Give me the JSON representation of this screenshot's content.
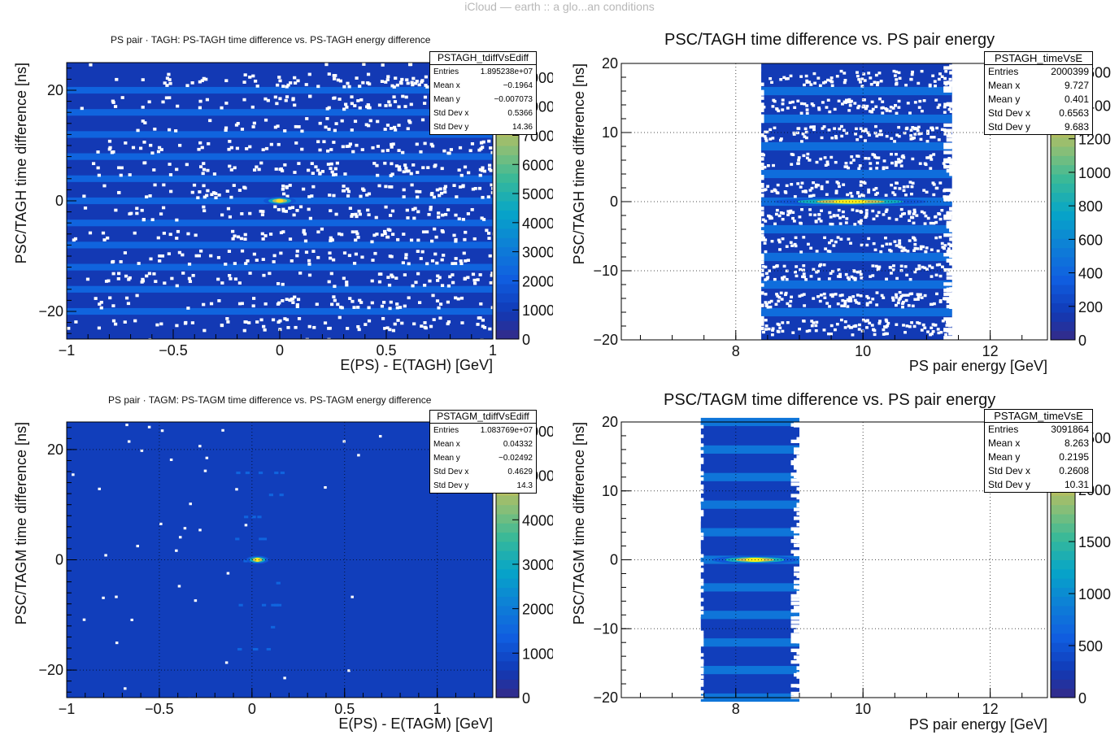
{
  "window": {
    "title": "iCloud — earth :: a glo...an conditions"
  },
  "panels": [
    {
      "title": "PS pair · TAGH: PS-TAGH time difference vs. PS-TAGH energy difference",
      "stats": {
        "name": "PSTAGH_tdiffVsEdiff",
        "rows": [
          {
            "label": "Entries",
            "value": "1.895238e+07"
          },
          {
            "label": "Mean x",
            "value": "−0.1964"
          },
          {
            "label": "Mean y",
            "value": "−0.007073"
          },
          {
            "label": "Std Dev x",
            "value": "0.5366"
          },
          {
            "label": "Std Dev y",
            "value": "14.36"
          }
        ]
      }
    },
    {
      "title": "PSC/TAGH time difference vs. PS pair energy",
      "stats": {
        "name": "PSTAGH_timeVsE",
        "rows": [
          {
            "label": "Entries",
            "value": "2000399"
          },
          {
            "label": "Mean x",
            "value": "9.727"
          },
          {
            "label": "Mean y",
            "value": "0.401"
          },
          {
            "label": "Std Dev x",
            "value": "0.6563"
          },
          {
            "label": "Std Dev y",
            "value": "9.683"
          }
        ]
      }
    },
    {
      "title": "PS pair · TAGM: PS-TAGM time difference vs. PS-TAGM energy difference",
      "stats": {
        "name": "PSTAGM_tdiffVsEdiff",
        "rows": [
          {
            "label": "Entries",
            "value": "1.083769e+07"
          },
          {
            "label": "Mean x",
            "value": "0.04332"
          },
          {
            "label": "Mean y",
            "value": "−0.02492"
          },
          {
            "label": "Std Dev x",
            "value": "0.4629"
          },
          {
            "label": "Std Dev y",
            "value": "14.3"
          }
        ]
      }
    },
    {
      "title": "PSC/TAGM time difference vs. PS pair energy",
      "stats": {
        "name": "PSTAGM_timeVsE",
        "rows": [
          {
            "label": "Entries",
            "value": "3091864"
          },
          {
            "label": "Mean x",
            "value": "8.263"
          },
          {
            "label": "Mean y",
            "value": "0.2195"
          },
          {
            "label": "Std Dev x",
            "value": "0.2608"
          },
          {
            "label": "Std Dev y",
            "value": "10.31"
          }
        ]
      }
    }
  ],
  "chart_data": [
    {
      "type": "heatmap",
      "title": "PS pair · TAGH: PS-TAGH time difference vs. PS-TAGH energy difference",
      "xlabel": "E(PS) - E(TAGH) [GeV]",
      "ylabel": "PSC/TAGH time difference [ns]",
      "xlim": [
        -1,
        1
      ],
      "ylim": [
        -25,
        25
      ],
      "xticks": [
        "−1",
        "−0.5",
        "0",
        "0.5",
        "1"
      ],
      "yticks": [
        "−20",
        "0",
        "20"
      ],
      "grid": false,
      "z_ticks": [
        "0",
        "1000",
        "2000",
        "3000",
        "4000",
        "5000",
        "6000",
        "7000",
        "8000",
        "9000"
      ],
      "zlim": [
        0,
        9500
      ],
      "peak": {
        "x": 0.0,
        "y": 0.0,
        "value": 9000
      },
      "time_bands_ns": [
        -20,
        -16,
        -12,
        -8,
        -4,
        0,
        4,
        8,
        12,
        16,
        20
      ],
      "stats_box": "top-right",
      "colormap": "kBird"
    },
    {
      "type": "heatmap",
      "title": "PSC/TAGH time difference vs. PS pair energy",
      "xlabel": "PS pair energy [GeV]",
      "ylabel": "PSC/TAGH time difference [ns]",
      "xlim": [
        6.2,
        12.9
      ],
      "ylim": [
        -20,
        20
      ],
      "xticks": [
        "8",
        "10",
        "12"
      ],
      "yticks": [
        "−20",
        "−10",
        "0",
        "10",
        "20"
      ],
      "grid": true,
      "z_ticks": [
        "0",
        "200",
        "400",
        "600",
        "800",
        "1000",
        "1200",
        "1400",
        "1600"
      ],
      "zlim": [
        0,
        1650
      ],
      "occupied_x_range": [
        8.4,
        11.4
      ],
      "peak": {
        "x": 9.7,
        "y": 0.0,
        "value": 1600
      },
      "time_bands_ns": [
        -16,
        -12,
        -8,
        -4,
        0,
        4,
        8,
        12,
        16
      ],
      "stats_box": "top-right",
      "colormap": "kBird"
    },
    {
      "type": "heatmap",
      "title": "PS pair · TAGM: PS-TAGM time difference vs. PS-TAGM energy difference",
      "xlabel": "E(PS) - E(TAGM) [GeV]",
      "ylabel": "PSC/TAGM time difference [ns]",
      "xlim": [
        -1,
        1.3
      ],
      "ylim": [
        -25,
        25
      ],
      "xticks": [
        "−1",
        "−0.5",
        "0",
        "0.5",
        "1"
      ],
      "yticks": [
        "−20",
        "0",
        "20"
      ],
      "grid": true,
      "z_ticks": [
        "0",
        "1000",
        "2000",
        "3000",
        "4000",
        "5000",
        "6000"
      ],
      "zlim": [
        0,
        6200
      ],
      "peak": {
        "x": 0.03,
        "y": 0.0,
        "value": 6000
      },
      "stats_box": "top-right",
      "colormap": "kBird"
    },
    {
      "type": "heatmap",
      "title": "PSC/TAGM time difference vs. PS pair energy",
      "xlabel": "PS pair energy [GeV]",
      "ylabel": "PSC/TAGM time difference [ns]",
      "xlim": [
        6.2,
        12.9
      ],
      "ylim": [
        -20,
        20
      ],
      "xticks": [
        "8",
        "10",
        "12"
      ],
      "yticks": [
        "−20",
        "−10",
        "0",
        "10",
        "20"
      ],
      "grid": true,
      "z_ticks": [
        "0",
        "500",
        "1000",
        "1500",
        "2000",
        "2500"
      ],
      "zlim": [
        0,
        2650
      ],
      "occupied_x_range": [
        7.45,
        9.0
      ],
      "peak": {
        "x": 8.3,
        "y": 0.0,
        "value": 2600
      },
      "time_bands_ns": [
        -20,
        -16,
        -12,
        -8,
        -4,
        0,
        4,
        8,
        12,
        16,
        20
      ],
      "stats_box": "top-right",
      "colormap": "kBird"
    }
  ]
}
